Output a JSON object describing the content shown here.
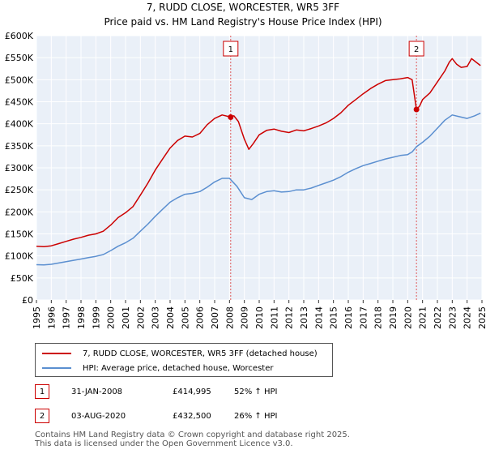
{
  "chart_data": {
    "type": "line",
    "title": "7, RUDD CLOSE, WORCESTER, WR5 3FF",
    "subtitle": "Price paid vs. HM Land Registry's House Price Index (HPI)",
    "xlabel": "",
    "ylabel": "",
    "xlim": [
      1995,
      2025
    ],
    "ylim": [
      0,
      600000
    ],
    "grid": true,
    "x_ticks": [
      "1995",
      "1996",
      "1997",
      "1998",
      "1999",
      "2000",
      "2001",
      "2002",
      "2003",
      "2004",
      "2005",
      "2006",
      "2007",
      "2008",
      "2009",
      "2010",
      "2011",
      "2012",
      "2013",
      "2014",
      "2015",
      "2016",
      "2017",
      "2018",
      "2019",
      "2020",
      "2021",
      "2022",
      "2023",
      "2024",
      "2025"
    ],
    "y_ticks": [
      {
        "value": 0,
        "label": "£0"
      },
      {
        "value": 50000,
        "label": "£50K"
      },
      {
        "value": 100000,
        "label": "£100K"
      },
      {
        "value": 150000,
        "label": "£150K"
      },
      {
        "value": 200000,
        "label": "£200K"
      },
      {
        "value": 250000,
        "label": "£250K"
      },
      {
        "value": 300000,
        "label": "£300K"
      },
      {
        "value": 350000,
        "label": "£350K"
      },
      {
        "value": 400000,
        "label": "£400K"
      },
      {
        "value": 450000,
        "label": "£450K"
      },
      {
        "value": 500000,
        "label": "£500K"
      },
      {
        "value": 550000,
        "label": "£550K"
      },
      {
        "value": 600000,
        "label": "£600K"
      }
    ],
    "series": [
      {
        "name": "7, RUDD CLOSE, WORCESTER, WR5 3FF (detached house)",
        "color": "#cc0000",
        "x": [
          1995.0,
          1995.5,
          1996.0,
          1996.5,
          1997.0,
          1997.5,
          1998.0,
          1998.5,
          1999.0,
          1999.5,
          2000.0,
          2000.5,
          2001.0,
          2001.5,
          2002.0,
          2002.5,
          2003.0,
          2003.5,
          2004.0,
          2004.5,
          2005.0,
          2005.5,
          2006.0,
          2006.5,
          2007.0,
          2007.5,
          2008.0,
          2008.3,
          2008.6,
          2009.0,
          2009.3,
          2009.6,
          2010.0,
          2010.5,
          2011.0,
          2011.5,
          2012.0,
          2012.5,
          2013.0,
          2013.5,
          2014.0,
          2014.5,
          2015.0,
          2015.5,
          2016.0,
          2016.5,
          2017.0,
          2017.5,
          2018.0,
          2018.5,
          2019.0,
          2019.5,
          2020.0,
          2020.3,
          2020.59,
          2020.8,
          2021.0,
          2021.5,
          2022.0,
          2022.5,
          2022.8,
          2023.0,
          2023.3,
          2023.6,
          2024.0,
          2024.3,
          2024.6,
          2024.9
        ],
        "values": [
          122000,
          121000,
          123000,
          128000,
          133000,
          138000,
          142000,
          147000,
          150000,
          156000,
          170000,
          187000,
          198000,
          212000,
          238000,
          265000,
          295000,
          320000,
          345000,
          362000,
          372000,
          370000,
          378000,
          398000,
          412000,
          420000,
          416000,
          418000,
          405000,
          365000,
          342000,
          355000,
          375000,
          385000,
          388000,
          383000,
          380000,
          386000,
          384000,
          389000,
          395000,
          402000,
          412000,
          425000,
          442000,
          455000,
          468000,
          480000,
          490000,
          498000,
          500000,
          502000,
          505000,
          500000,
          432500,
          440000,
          455000,
          470000,
          495000,
          520000,
          540000,
          548000,
          535000,
          528000,
          530000,
          548000,
          540000,
          532000
        ]
      },
      {
        "name": "HPI: Average price, detached house, Worcester",
        "color": "#5b8fd0",
        "x": [
          1995.0,
          1995.5,
          1996.0,
          1996.5,
          1997.0,
          1997.5,
          1998.0,
          1998.5,
          1999.0,
          1999.5,
          2000.0,
          2000.5,
          2001.0,
          2001.5,
          2002.0,
          2002.5,
          2003.0,
          2003.5,
          2004.0,
          2004.5,
          2005.0,
          2005.5,
          2006.0,
          2006.5,
          2007.0,
          2007.5,
          2008.0,
          2008.5,
          2009.0,
          2009.5,
          2010.0,
          2010.5,
          2011.0,
          2011.5,
          2012.0,
          2012.5,
          2013.0,
          2013.5,
          2014.0,
          2014.5,
          2015.0,
          2015.5,
          2016.0,
          2016.5,
          2017.0,
          2017.5,
          2018.0,
          2018.5,
          2019.0,
          2019.5,
          2020.0,
          2020.3,
          2020.6,
          2021.0,
          2021.5,
          2022.0,
          2022.5,
          2023.0,
          2023.5,
          2024.0,
          2024.5,
          2024.9
        ],
        "values": [
          80000,
          79500,
          81000,
          84000,
          87000,
          90000,
          93000,
          96000,
          99000,
          103000,
          112000,
          122000,
          130000,
          140000,
          156000,
          172000,
          190000,
          206000,
          222000,
          232000,
          240000,
          242000,
          246000,
          256000,
          268000,
          276000,
          276000,
          258000,
          232000,
          228000,
          240000,
          246000,
          248000,
          245000,
          246000,
          250000,
          250000,
          254000,
          260000,
          266000,
          272000,
          280000,
          290000,
          298000,
          305000,
          310000,
          315000,
          320000,
          324000,
          328000,
          330000,
          336000,
          348000,
          358000,
          372000,
          390000,
          408000,
          420000,
          416000,
          412000,
          418000,
          424000
        ]
      }
    ],
    "markers": [
      {
        "id": "1",
        "x": 2008.08,
        "value": 414995
      },
      {
        "id": "2",
        "x": 2020.59,
        "value": 432500
      }
    ]
  },
  "legend": {
    "property_label": "7, RUDD CLOSE, WORCESTER, WR5 3FF (detached house)",
    "hpi_label": "HPI: Average price, detached house, Worcester",
    "property_color": "#cc0000",
    "hpi_color": "#5b8fd0"
  },
  "transactions": [
    {
      "num": "1",
      "date": "31-JAN-2008",
      "price": "£414,995",
      "hpi": "52% ↑ HPI"
    },
    {
      "num": "2",
      "date": "03-AUG-2020",
      "price": "£432,500",
      "hpi": "26% ↑ HPI"
    }
  ],
  "footer": {
    "line1": "Contains HM Land Registry data © Crown copyright and database right 2025.",
    "line2": "This data is licensed under the Open Government Licence v3.0."
  }
}
